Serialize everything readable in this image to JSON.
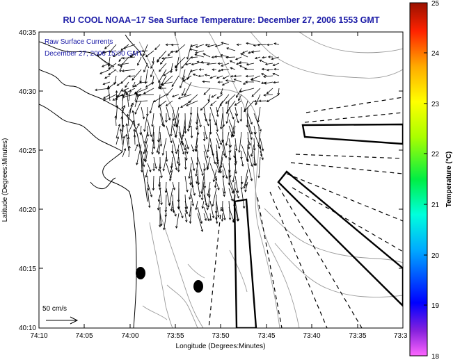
{
  "figure": {
    "title": "RU COOL  NOAA−17  Sea Surface Temperature:  December 27, 2006 1553 GMT",
    "inset_line1": "Raw Surface Currents",
    "inset_line2": "December 27, 2006 15:00 GMT",
    "scale_label": "50 cm/s",
    "xlabel": "Longitude (Degrees:Minutes)",
    "ylabel": "Latitude (Degrees:Minutes)",
    "colorbar_label": "Temperature (°C)"
  },
  "map": {
    "x_ticks": [
      "74:10",
      "74:05",
      "74:00",
      "73:55",
      "73:50",
      "73:45",
      "73:40",
      "73:35",
      "73:3"
    ],
    "y_ticks": [
      "40:35",
      "40:30",
      "40:25",
      "40:20",
      "40:15",
      "40:10"
    ],
    "colorbar_ticks": [
      "25",
      "24",
      "23",
      "22",
      "21",
      "20",
      "19",
      "18"
    ],
    "colors": {
      "title": "#1a1aa6",
      "land": "#ffffff",
      "coast": "#000000",
      "bathymetry": "#9a9a9a"
    }
  }
}
